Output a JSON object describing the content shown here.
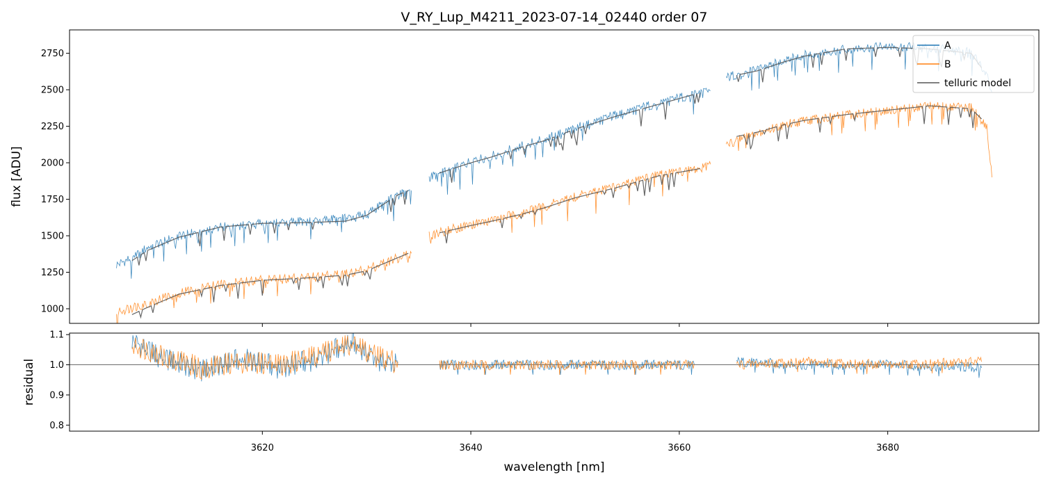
{
  "chart_data": {
    "type": "line",
    "title": "V_RY_Lup_M4211_2023-07-14_02440  order 07",
    "xlabel": "wavelength [nm]",
    "xlim": [
      3601.5,
      3694.5
    ],
    "xticks": [
      3620,
      3640,
      3660,
      3680
    ],
    "xtick_labels": [
      "3620",
      "3640",
      "3660",
      "3680"
    ],
    "panels": [
      {
        "id": "flux",
        "ylabel": "flux [ADU]",
        "ylim": [
          900,
          2910
        ],
        "yticks": [
          1000,
          1250,
          1500,
          1750,
          2000,
          2250,
          2500,
          2750
        ],
        "ytick_labels": [
          "1000",
          "1250",
          "1500",
          "1750",
          "2000",
          "2250",
          "2500",
          "2750"
        ],
        "legend_position": "top-right",
        "series": [
          {
            "name": "A",
            "color": "#1f77b4",
            "segments": [
              [
                [
                  3606.0,
                  1300
                ],
                [
                  3607.5,
                  1350
                ],
                [
                  3608.0,
                  1370
                ],
                [
                  3609.0,
                  1420
                ],
                [
                  3612.0,
                  1500
                ],
                [
                  3616.0,
                  1560
                ],
                [
                  3620.0,
                  1590
                ],
                [
                  3624.0,
                  1600
                ],
                [
                  3628.0,
                  1620
                ],
                [
                  3630.0,
                  1650
                ],
                [
                  3633.0,
                  1780
                ],
                [
                  3634.3,
                  1810
                ]
              ],
              [
                [
                  3636.0,
                  1900
                ],
                [
                  3638.0,
                  1950
                ],
                [
                  3640.0,
                  2010
                ],
                [
                  3642.0,
                  2050
                ],
                [
                  3645.0,
                  2120
                ],
                [
                  3646.5,
                  2150
                ],
                [
                  3650.0,
                  2240
                ],
                [
                  3654.0,
                  2330
                ],
                [
                  3658.0,
                  2410
                ],
                [
                  3662.0,
                  2480
                ],
                [
                  3663.0,
                  2495
                ]
              ],
              [
                [
                  3664.5,
                  2580
                ],
                [
                  3666.0,
                  2620
                ],
                [
                  3667.5,
                  2640
                ],
                [
                  3670.0,
                  2700
                ],
                [
                  3672.0,
                  2740
                ],
                [
                  3676.0,
                  2780
                ],
                [
                  3680.0,
                  2800
                ],
                [
                  3684.0,
                  2790
                ],
                [
                  3688.0,
                  2760
                ],
                [
                  3689.5,
                  2600
                ],
                [
                  3690.0,
                  2480
                ]
              ]
            ]
          },
          {
            "name": "B",
            "color": "#ff7f0e",
            "segments": [
              [
                [
                  3606.0,
                  980
                ],
                [
                  3607.5,
                  1010
                ],
                [
                  3609.0,
                  1040
                ],
                [
                  3612.0,
                  1110
                ],
                [
                  3616.0,
                  1170
                ],
                [
                  3620.0,
                  1200
                ],
                [
                  3624.0,
                  1215
                ],
                [
                  3628.0,
                  1240
                ],
                [
                  3630.0,
                  1270
                ],
                [
                  3633.0,
                  1350
                ],
                [
                  3634.3,
                  1380
                ]
              ],
              [
                [
                  3636.0,
                  1500
                ],
                [
                  3638.0,
                  1545
                ],
                [
                  3640.0,
                  1575
                ],
                [
                  3642.0,
                  1610
                ],
                [
                  3645.0,
                  1660
                ],
                [
                  3646.5,
                  1690
                ],
                [
                  3650.0,
                  1770
                ],
                [
                  3654.0,
                  1840
                ],
                [
                  3658.0,
                  1920
                ],
                [
                  3662.0,
                  1960
                ],
                [
                  3663.0,
                  1990
                ]
              ],
              [
                [
                  3664.5,
                  2120
                ],
                [
                  3666.0,
                  2170
                ],
                [
                  3667.5,
                  2200
                ],
                [
                  3670.0,
                  2260
                ],
                [
                  3672.0,
                  2290
                ],
                [
                  3676.0,
                  2330
                ],
                [
                  3680.0,
                  2360
                ],
                [
                  3684.0,
                  2390
                ],
                [
                  3688.0,
                  2380
                ],
                [
                  3689.5,
                  2250
                ],
                [
                  3690.0,
                  1900
                ]
              ]
            ]
          },
          {
            "name": "telluric model",
            "color": "#555555",
            "segments": [
              [
                [
                  3607.5,
                  1330
                ],
                [
                  3609.0,
                  1400
                ],
                [
                  3612.0,
                  1490
                ],
                [
                  3616.0,
                  1560
                ],
                [
                  3620.0,
                  1585
                ],
                [
                  3624.0,
                  1590
                ],
                [
                  3628.0,
                  1600
                ],
                [
                  3630.0,
                  1640
                ],
                [
                  3633.0,
                  1780
                ],
                [
                  3634.0,
                  1810
                ]
              ],
              [
                [
                  3637.0,
                  1930
                ],
                [
                  3640.0,
                  2000
                ],
                [
                  3642.0,
                  2040
                ],
                [
                  3645.0,
                  2110
                ],
                [
                  3647.0,
                  2150
                ],
                [
                  3650.0,
                  2230
                ],
                [
                  3654.0,
                  2320
                ],
                [
                  3658.0,
                  2400
                ],
                [
                  3662.0,
                  2480
                ]
              ],
              [
                [
                  3665.5,
                  2600
                ],
                [
                  3667.5,
                  2630
                ],
                [
                  3670.0,
                  2690
                ],
                [
                  3672.0,
                  2730
                ],
                [
                  3676.0,
                  2780
                ],
                [
                  3680.0,
                  2790
                ],
                [
                  3684.0,
                  2780
                ],
                [
                  3688.0,
                  2750
                ],
                [
                  3689.0,
                  2650
                ]
              ],
              [
                [
                  3607.5,
                  960
                ],
                [
                  3609.0,
                  1010
                ],
                [
                  3612.0,
                  1100
                ],
                [
                  3616.0,
                  1160
                ],
                [
                  3620.0,
                  1195
                ],
                [
                  3624.0,
                  1210
                ],
                [
                  3628.0,
                  1230
                ],
                [
                  3630.0,
                  1260
                ],
                [
                  3633.0,
                  1350
                ],
                [
                  3634.0,
                  1380
                ]
              ],
              [
                [
                  3637.0,
                  1520
                ],
                [
                  3640.0,
                  1570
                ],
                [
                  3642.0,
                  1600
                ],
                [
                  3645.0,
                  1650
                ],
                [
                  3647.0,
                  1690
                ],
                [
                  3650.0,
                  1760
                ],
                [
                  3654.0,
                  1830
                ],
                [
                  3658.0,
                  1910
                ],
                [
                  3662.0,
                  1960
                ]
              ],
              [
                [
                  3665.5,
                  2180
                ],
                [
                  3667.5,
                  2210
                ],
                [
                  3670.0,
                  2260
                ],
                [
                  3672.0,
                  2290
                ],
                [
                  3676.0,
                  2330
                ],
                [
                  3680.0,
                  2360
                ],
                [
                  3684.0,
                  2390
                ],
                [
                  3688.0,
                  2370
                ],
                [
                  3689.0,
                  2300
                ]
              ]
            ]
          }
        ]
      },
      {
        "id": "residual",
        "ylabel": "residual",
        "ylim": [
          0.78,
          1.105
        ],
        "yticks": [
          0.8,
          0.9,
          1.0,
          1.1
        ],
        "ytick_labels": [
          "0.8",
          "0.9",
          "1.0",
          "1.1"
        ],
        "reference_line": 1.0,
        "series": [
          {
            "name": "A",
            "color": "#1f77b4",
            "segments": [
              [
                [
                  3607.5,
                  1.08
                ],
                [
                  3610.0,
                  1.03
                ],
                [
                  3614.0,
                  0.98
                ],
                [
                  3618.0,
                  1.02
                ],
                [
                  3622.0,
                  0.99
                ],
                [
                  3626.0,
                  1.03
                ],
                [
                  3628.5,
                  1.08
                ],
                [
                  3631.0,
                  1.02
                ],
                [
                  3633.0,
                  1.0
                ]
              ],
              [
                [
                  3637.0,
                  1.0
                ],
                [
                  3645.0,
                  1.0
                ],
                [
                  3653.0,
                  1.0
                ],
                [
                  3661.5,
                  1.0
                ]
              ],
              [
                [
                  3665.5,
                  1.01
                ],
                [
                  3672.0,
                  1.0
                ],
                [
                  3680.0,
                  1.0
                ],
                [
                  3689.0,
                  0.99
                ]
              ]
            ]
          },
          {
            "name": "B",
            "color": "#ff7f0e",
            "segments": [
              [
                [
                  3607.5,
                  1.07
                ],
                [
                  3610.0,
                  1.04
                ],
                [
                  3614.0,
                  0.99
                ],
                [
                  3618.0,
                  1.01
                ],
                [
                  3622.0,
                  1.0
                ],
                [
                  3626.0,
                  1.04
                ],
                [
                  3628.5,
                  1.07
                ],
                [
                  3631.0,
                  1.03
                ],
                [
                  3633.0,
                  1.01
                ]
              ],
              [
                [
                  3637.0,
                  1.0
                ],
                [
                  3645.0,
                  1.0
                ],
                [
                  3653.0,
                  1.0
                ],
                [
                  3661.5,
                  1.0
                ]
              ],
              [
                [
                  3665.5,
                  1.0
                ],
                [
                  3672.0,
                  1.01
                ],
                [
                  3680.0,
                  1.0
                ],
                [
                  3689.0,
                  1.01
                ]
              ]
            ]
          }
        ]
      }
    ]
  }
}
